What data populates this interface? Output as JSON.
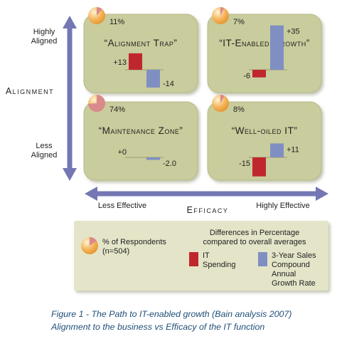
{
  "axes": {
    "y_top_label": [
      "Highly",
      "Aligned"
    ],
    "y_bottom_label": [
      "Less",
      "Aligned"
    ],
    "y_title": "Alignment",
    "x_left_label": "Less Effective",
    "x_right_label": "Highly Effective",
    "x_title": "Efficacy"
  },
  "legend": {
    "pie_label": [
      "% of Respondents",
      "(n=504)"
    ],
    "diff_title": [
      "Differences in Percentage",
      "compared to overall averages"
    ],
    "it_spending": [
      "IT",
      "Spending"
    ],
    "growth_rate": [
      "3-Year Sales",
      "Compound",
      "Annual",
      "Growth Rate"
    ]
  },
  "caption": {
    "line1": "Figure 1 - The Path to IT-enabled growth (Bain analysis 2007)",
    "line2": "Alignment to the business vs Efficacy of the IT function"
  },
  "colors": {
    "panel": "#c9cc9c",
    "panel_stroke": "#b7ba88",
    "axis_arrow": "#7477b3",
    "it_spending": "#c0272d",
    "growth_rate": "#7f8fc2",
    "pie_fill": "#f2ad52",
    "pie_slice": "#d98a8a",
    "legend_bg": "#e4e5c8"
  },
  "chart_data": {
    "type": "bar",
    "series_names": [
      "IT Spending",
      "3-Year Sales Compound Annual Growth Rate"
    ],
    "quadrants": [
      {
        "name": "“Alignment Trap”",
        "respondents_pct": 11,
        "pct_label": "11%",
        "it_spending": 13,
        "growth_rate": -14,
        "it_label": "+13",
        "growth_label": "-14"
      },
      {
        "name": "“IT-Enabled Growth”",
        "respondents_pct": 7,
        "pct_label": "7%",
        "it_spending": -6,
        "growth_rate": 35,
        "it_label": "-6",
        "growth_label": "+35"
      },
      {
        "name": "“Maintenance Zone”",
        "respondents_pct": 74,
        "pct_label": "74%",
        "it_spending": 0,
        "growth_rate": -2.0,
        "it_label": "+0",
        "growth_label": "-2.0"
      },
      {
        "name": "“Well-oiled IT”",
        "respondents_pct": 8,
        "pct_label": "8%",
        "it_spending": -15,
        "growth_rate": 11,
        "it_label": "-15",
        "growth_label": "+11"
      }
    ]
  }
}
